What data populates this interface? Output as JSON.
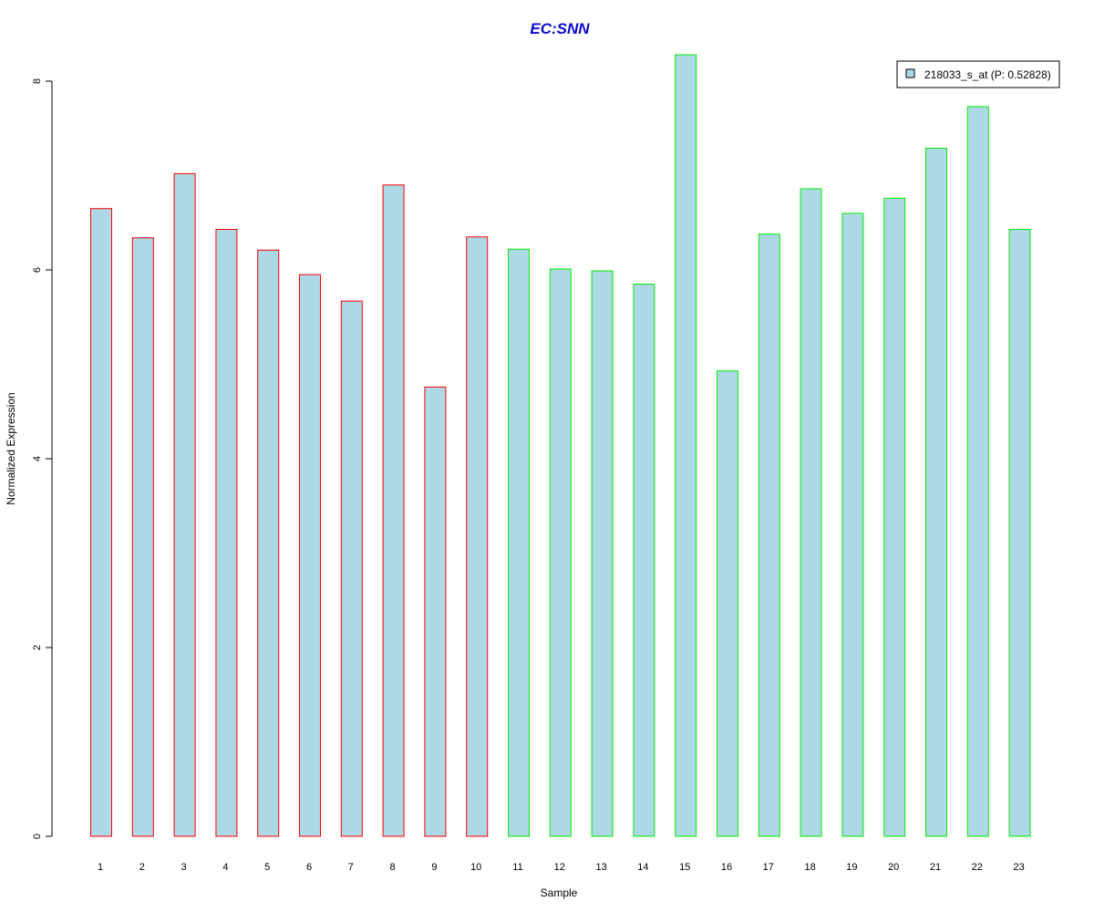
{
  "chart_data": {
    "type": "bar",
    "title": "EC:SNN",
    "xlabel": "Sample",
    "ylabel": "Normalized Expression",
    "categories": [
      "1",
      "2",
      "3",
      "4",
      "5",
      "6",
      "7",
      "8",
      "9",
      "10",
      "11",
      "12",
      "13",
      "14",
      "15",
      "16",
      "17",
      "18",
      "19",
      "20",
      "21",
      "22",
      "23"
    ],
    "series": [
      {
        "name": "218033_s_at (P: 0.52828)",
        "values": [
          6.65,
          6.34,
          7.02,
          6.43,
          6.21,
          5.95,
          5.67,
          6.9,
          4.76,
          6.35,
          6.22,
          6.01,
          5.99,
          5.85,
          8.28,
          4.93,
          6.38,
          6.86,
          6.6,
          6.76,
          7.29,
          7.73,
          6.43
        ]
      }
    ],
    "bar_outline_colors": [
      "#ff0000",
      "#ff0000",
      "#ff0000",
      "#ff0000",
      "#ff0000",
      "#ff0000",
      "#ff0000",
      "#ff0000",
      "#ff0000",
      "#ff0000",
      "#00ee00",
      "#00ee00",
      "#00ee00",
      "#00ee00",
      "#00ee00",
      "#00ee00",
      "#00ee00",
      "#00ee00",
      "#00ee00",
      "#00ee00",
      "#00ee00",
      "#00ee00",
      "#00ee00"
    ],
    "fill_color": "#add8e6",
    "title_color": "#0a0acd",
    "yticks": [
      0,
      2,
      4,
      6,
      8
    ],
    "ylim": [
      0,
      8.3
    ],
    "grid": false,
    "legend_position": "top-right"
  }
}
